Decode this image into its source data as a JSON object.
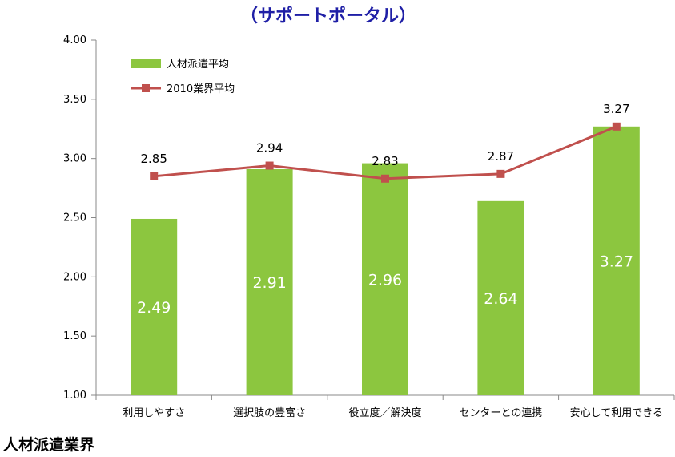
{
  "chart_data": {
    "type": "bar",
    "title": "（サポートポータル）",
    "categories": [
      "利用しやすさ",
      "選択肢の豊富さ",
      "役立度／解決度",
      "センターとの連携",
      "安心して利用できる"
    ],
    "series": [
      {
        "name": "人材派遣平均",
        "kind": "bar",
        "color": "#8cc63f",
        "values": [
          2.49,
          2.91,
          2.96,
          2.64,
          3.27
        ],
        "labels": [
          "2.49",
          "2.91",
          "2.96",
          "2.64",
          "3.27"
        ]
      },
      {
        "name": "2010業界平均",
        "kind": "line",
        "color": "#c0504d",
        "values": [
          2.85,
          2.94,
          2.83,
          2.87,
          3.27
        ],
        "labels": [
          "2.85",
          "2.94",
          "2.83",
          "2.87",
          "3.27"
        ]
      }
    ],
    "ylim": [
      1.0,
      4.0
    ],
    "yticks": [
      "1.00",
      "1.50",
      "2.00",
      "2.50",
      "3.00",
      "3.50",
      "4.00"
    ],
    "grid": false,
    "legend_position": "top-left"
  },
  "footer": {
    "heading": "人材派遣業界"
  }
}
